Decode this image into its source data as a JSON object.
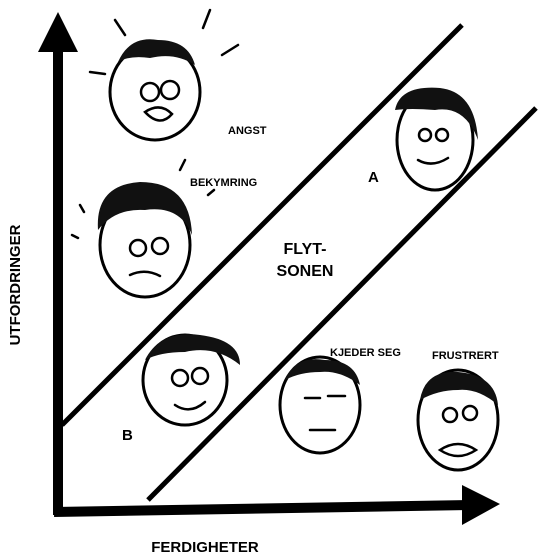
{
  "axes": {
    "y_label": "UTFORDRINGER",
    "x_label": "FERDIGHETER"
  },
  "zones": {
    "anxiety": "ANGST",
    "worry": "BEKYMRING",
    "point_a": "A",
    "flow_zone": [
      "FLYT-",
      "SONEN"
    ],
    "boredom": "KJEDER SEG",
    "frustration": "FRUSTRERT",
    "point_b": "B"
  }
}
